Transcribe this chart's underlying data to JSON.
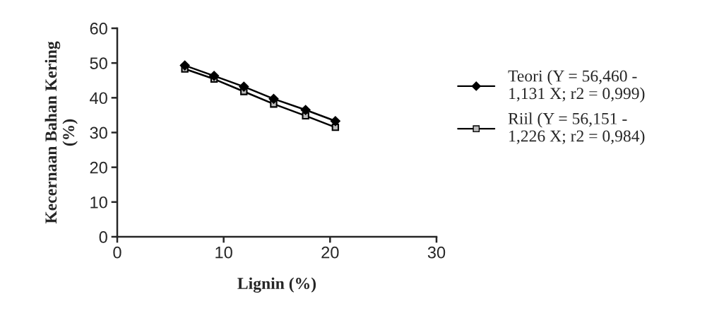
{
  "chart_data": {
    "type": "line",
    "xlabel": "Lignin (%)",
    "ylabel": "Kecernaan Bahan Kering\n(%)",
    "series": [
      {
        "name": "Teori (Y = 56,460 -\n1,131 X; r2 = 0,999)",
        "color": "#000000",
        "marker": "diamond",
        "x": [
          6.35,
          9.1,
          11.9,
          14.7,
          17.7,
          20.5
        ],
        "values": [
          49.3,
          46.3,
          43.2,
          39.7,
          36.5,
          33.3
        ]
      },
      {
        "name": "Riil (Y = 56,151 -\n1,226 X; r2 = 0,984)",
        "color": "#000000",
        "marker": "square",
        "x": [
          6.35,
          9.1,
          11.9,
          14.7,
          17.7,
          20.5
        ],
        "values": [
          48.3,
          45.4,
          41.8,
          38.2,
          34.8,
          31.5
        ]
      }
    ],
    "xlim": [
      0,
      30
    ],
    "xticks": [
      0,
      10,
      20,
      30
    ],
    "ylim": [
      0,
      60
    ],
    "yticks": [
      0,
      10,
      20,
      30,
      40,
      50,
      60
    ],
    "grid": false,
    "legend": "right",
    "line_style": "solid"
  }
}
